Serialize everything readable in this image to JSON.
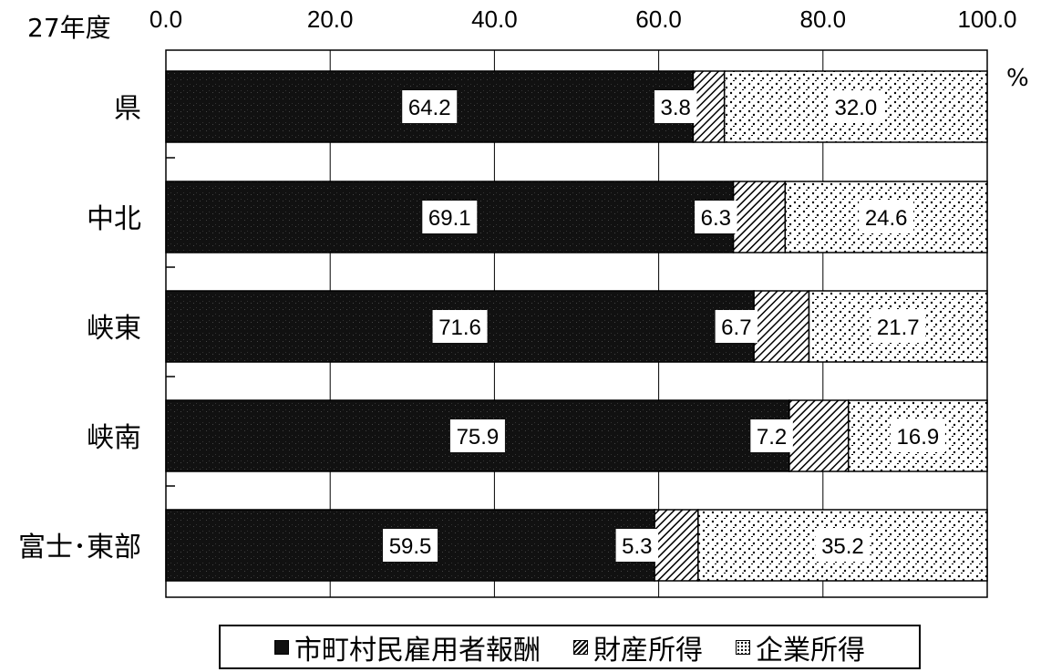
{
  "chart_data": {
    "type": "bar",
    "orientation": "horizontal",
    "stacked": true,
    "year_label": "27年度",
    "unit_label": "%",
    "xlim": [
      0,
      100
    ],
    "x_ticks": [
      "0.0",
      "20.0",
      "40.0",
      "60.0",
      "80.0",
      "100.0"
    ],
    "grid": true,
    "legend_position": "bottom",
    "categories": [
      "県",
      "中北",
      "峡東",
      "峡南",
      "富士･東部"
    ],
    "series": [
      {
        "name": "市町村民雇用者報酬",
        "values": [
          64.2,
          69.1,
          71.6,
          75.9,
          59.5
        ],
        "labels": [
          "64.2",
          "69.1",
          "71.6",
          "75.9",
          "59.5"
        ],
        "fill": "#111111"
      },
      {
        "name": "財産所得",
        "values": [
          3.8,
          6.3,
          6.7,
          7.2,
          5.3
        ],
        "labels": [
          "3.8",
          "6.3",
          "6.7",
          "7.2",
          "5.3"
        ],
        "fill": "hatch"
      },
      {
        "name": "企業所得",
        "values": [
          32.0,
          24.6,
          21.7,
          16.9,
          35.2
        ],
        "labels": [
          "32.0",
          "24.6",
          "21.7",
          "16.9",
          "35.2"
        ],
        "fill": "dots"
      }
    ]
  }
}
